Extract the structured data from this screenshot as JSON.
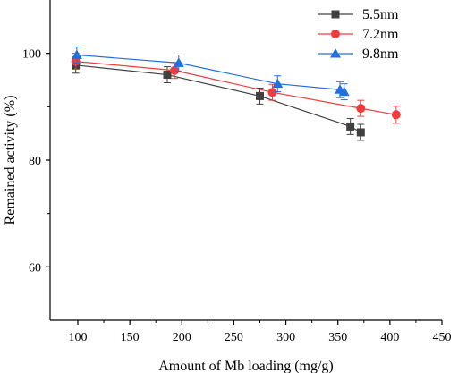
{
  "chart_data": {
    "type": "scatter",
    "title": "",
    "xlabel": "Amount of Mb loading (mg/g)",
    "ylabel": "Remained activity (%)",
    "xlim": [
      75,
      450
    ],
    "ylim": [
      50,
      110
    ],
    "xticks": [
      "100",
      "150",
      "200",
      "250",
      "300",
      "350",
      "400",
      "450"
    ],
    "yticks": [
      "60",
      "80",
      "100"
    ],
    "legend_position": "top-right",
    "grid": false,
    "series": [
      {
        "name": "5.5nm",
        "color": "#404040",
        "marker": "square",
        "points": [
          {
            "x": 98,
            "y": 97.8,
            "err": 1.5
          },
          {
            "x": 186,
            "y": 96.0,
            "err": 1.5
          },
          {
            "x": 275,
            "y": 92.0,
            "err": 1.5
          },
          {
            "x": 362,
            "y": 86.3,
            "err": 1.5
          },
          {
            "x": 372,
            "y": 85.2,
            "err": 1.5
          }
        ]
      },
      {
        "name": "7.2nm",
        "color": "#f03c3c",
        "marker": "circle",
        "points": [
          {
            "x": 98,
            "y": 98.5,
            "err": 1.5
          },
          {
            "x": 193,
            "y": 96.8,
            "err": 1.5
          },
          {
            "x": 287,
            "y": 92.7,
            "err": 1.5
          },
          {
            "x": 372,
            "y": 89.7,
            "err": 1.5
          },
          {
            "x": 406,
            "y": 88.5,
            "err": 1.6
          }
        ]
      },
      {
        "name": "9.8nm",
        "color": "#1f6fe0",
        "marker": "triangle",
        "points": [
          {
            "x": 99,
            "y": 99.7,
            "err": 1.5
          },
          {
            "x": 197,
            "y": 98.2,
            "err": 1.5
          },
          {
            "x": 292,
            "y": 94.3,
            "err": 1.5
          },
          {
            "x": 352,
            "y": 93.2,
            "err": 1.5
          },
          {
            "x": 356,
            "y": 92.8,
            "err": 1.5
          }
        ]
      }
    ]
  }
}
